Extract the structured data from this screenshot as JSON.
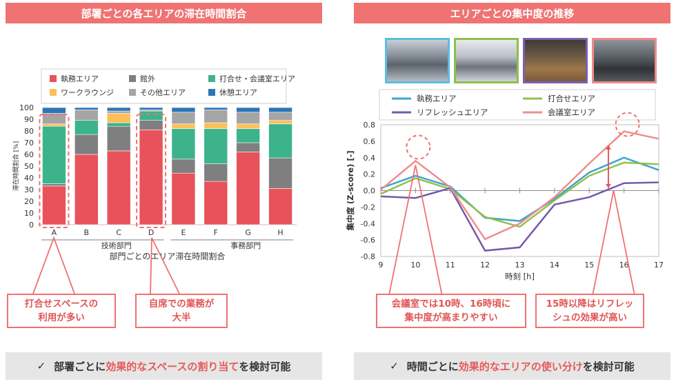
{
  "left": {
    "title": "部署ごとの各エリアの滞在時間割合",
    "chart_data": {
      "type": "bar",
      "stacked": true,
      "title": "部門ごとのエリア滞在時間割合",
      "ylabel": "滞在時間割合 [%]",
      "ylim": [
        0,
        100
      ],
      "yticks": [
        0,
        10,
        20,
        30,
        40,
        50,
        60,
        70,
        80,
        90,
        100
      ],
      "categories": [
        "A",
        "B",
        "C",
        "D",
        "E",
        "F",
        "G",
        "H"
      ],
      "groups": [
        {
          "label": "技術部門",
          "categories": [
            "A",
            "B",
            "C",
            "D"
          ]
        },
        {
          "label": "事務部門",
          "categories": [
            "E",
            "F",
            "G",
            "H"
          ]
        }
      ],
      "series": [
        {
          "name": "執務エリア",
          "color": "#e8525a",
          "values": [
            33,
            60,
            63,
            81,
            44,
            37,
            62,
            31
          ]
        },
        {
          "name": "館外",
          "color": "#7f7f7f",
          "values": [
            2,
            17,
            21,
            8,
            12,
            15,
            8,
            26
          ]
        },
        {
          "name": "打合せ・会議室エリア",
          "color": "#3db38c",
          "values": [
            49,
            12,
            3,
            8,
            26,
            30,
            12,
            29
          ]
        },
        {
          "name": "ワークラウンジ",
          "color": "#fcc05a",
          "values": [
            2,
            0,
            8,
            0,
            4,
            5,
            4,
            3
          ]
        },
        {
          "name": "その他エリア",
          "color": "#a5a5a5",
          "values": [
            9,
            9,
            2,
            1,
            10,
            11,
            10,
            7
          ]
        },
        {
          "name": "休憩エリア",
          "color": "#2e75b6",
          "values": [
            5,
            2,
            3,
            2,
            4,
            2,
            4,
            4
          ]
        }
      ],
      "highlight_categories": [
        "A",
        "D"
      ]
    },
    "callout_a": "打合せスペースの\n利用が多い",
    "callout_d": "自席での業務が\n大半",
    "footer_check": "✓",
    "footer_pre": "部署ごとに",
    "footer_hl": "効果的なスペースの割り当て",
    "footer_post": "を検討可能"
  },
  "right": {
    "title": "エリアごとの集中度の推移",
    "photo_colors": [
      "#5bbde0",
      "#8dbf4c",
      "#7a5fae",
      "#f08a8a"
    ],
    "chart_data": {
      "type": "line",
      "xlabel": "時刻 [h]",
      "ylabel": "集中度 (Z-score) [-]",
      "xlim": [
        9,
        17
      ],
      "ylim": [
        -0.8,
        0.8
      ],
      "xticks": [
        9,
        10,
        11,
        12,
        13,
        14,
        15,
        16,
        17
      ],
      "yticks": [
        -0.8,
        -0.6,
        -0.4,
        -0.2,
        0.0,
        0.2,
        0.4,
        0.6,
        0.8
      ],
      "x": [
        9,
        10,
        11,
        12,
        13,
        14,
        15,
        16,
        17
      ],
      "series": [
        {
          "name": "執務エリア",
          "color": "#3aa6cd",
          "values": [
            0.03,
            0.18,
            0.05,
            -0.33,
            -0.37,
            -0.1,
            0.22,
            0.4,
            0.25
          ]
        },
        {
          "name": "打合せエリア",
          "color": "#92c04a",
          "values": [
            -0.04,
            0.15,
            0.02,
            -0.32,
            -0.44,
            -0.12,
            0.18,
            0.34,
            0.32
          ]
        },
        {
          "name": "リフレッシュエリア",
          "color": "#7458aa",
          "values": [
            -0.07,
            -0.09,
            0.03,
            -0.73,
            -0.69,
            -0.17,
            -0.08,
            0.09,
            0.1
          ]
        },
        {
          "name": "会議室エリア",
          "color": "#f08c8c",
          "values": [
            0.01,
            0.36,
            0.04,
            -0.59,
            -0.4,
            -0.08,
            0.33,
            0.72,
            0.63
          ]
        }
      ]
    },
    "callout_10": "会議室では10時、16時頃に\n集中度が高まりやすい",
    "callout_15": "15時以降はリフレッ\nシュの効果が高い",
    "footer_check": "✓",
    "footer_pre": "時間ごとに",
    "footer_hl": "効果的なエリアの使い分け",
    "footer_post": "を検討可能"
  }
}
